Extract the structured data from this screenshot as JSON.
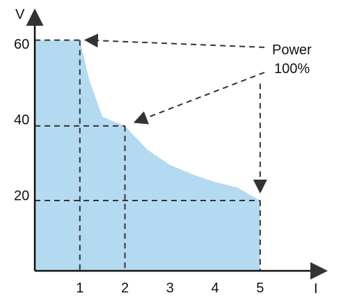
{
  "chart_data": {
    "type": "area",
    "xlabel": "I",
    "ylabel": "V",
    "xlim": [
      0,
      6.3
    ],
    "ylim": [
      0,
      67
    ],
    "x_ticks": [
      "1",
      "2",
      "3",
      "4",
      "5"
    ],
    "x_tick_values": [
      1,
      2,
      3,
      4,
      5
    ],
    "y_ticks": [
      "20",
      "40",
      "60"
    ],
    "y_tick_values": [
      20,
      40,
      60
    ],
    "grid": false,
    "series": [
      {
        "x": [
          0,
          1,
          1.2,
          1.5,
          2,
          2.5,
          3,
          3.5,
          4,
          4.5,
          5
        ],
        "y": [
          61,
          61,
          50.8,
          40.7,
          38.3,
          32,
          28,
          25.5,
          23.5,
          22,
          18.6
        ]
      }
    ],
    "reference_lines": [
      {
        "x": 1,
        "y": 61
      },
      {
        "x": 2,
        "y": 38.3
      },
      {
        "x": 5,
        "y": 18.6
      }
    ],
    "annotations": {
      "line1": "Power",
      "line2": "100%"
    },
    "colors": {
      "fill": "#b3daf1",
      "axis": "#111111",
      "dash": "#333333"
    }
  }
}
